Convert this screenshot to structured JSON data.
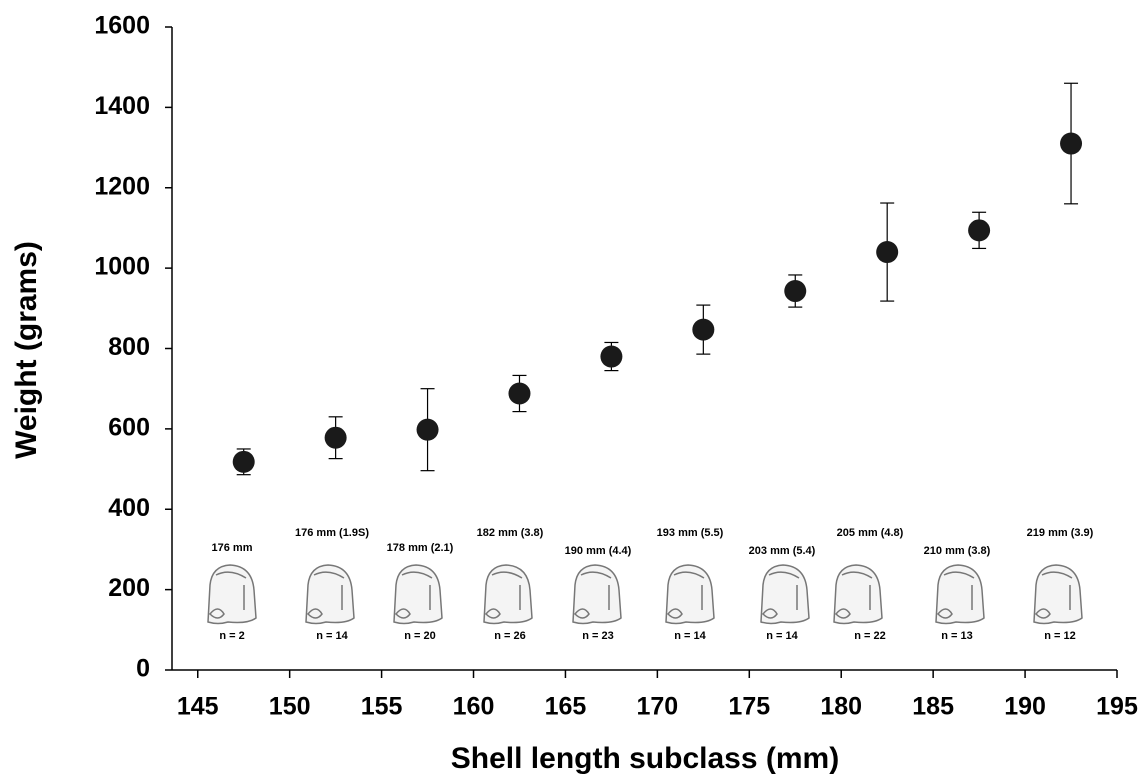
{
  "chart_data": {
    "type": "scatter",
    "x_label": "Shell length subclass (mm)",
    "y_label": "Weight (grams)",
    "x": [
      147.5,
      152.5,
      157.5,
      162.5,
      167.5,
      172.5,
      177.5,
      182.5,
      187.5,
      192.5
    ],
    "values": [
      518,
      578,
      598,
      688,
      780,
      847,
      943,
      1040,
      1094,
      1310
    ],
    "errors": [
      32,
      52,
      102,
      45,
      35,
      61,
      40,
      122,
      45,
      150
    ],
    "color": "#1a1a1a",
    "xlim": [
      143.6,
      195
    ],
    "xticks": [
      145,
      150,
      155,
      160,
      165,
      170,
      175,
      180,
      185,
      190,
      195
    ],
    "ylim": [
      0,
      1600
    ],
    "yticks": [
      0,
      200,
      400,
      600,
      800,
      1000,
      1200,
      1400,
      1600
    ],
    "annotations": [
      {
        "label": "176 mm",
        "n": "n = 2"
      },
      {
        "label": "176 mm (1.9S)",
        "n": "n = 14"
      },
      {
        "label": "178 mm (2.1)",
        "n": "n = 20"
      },
      {
        "label": "182 mm (3.8)",
        "n": "n = 26"
      },
      {
        "label": "190 mm (4.4)",
        "n": "n = 23"
      },
      {
        "label": "193 mm (5.5)",
        "n": "n = 14"
      },
      {
        "label": "203 mm (5.4)",
        "n": "n = 14"
      },
      {
        "label": "205 mm (4.8)",
        "n": "n = 22"
      },
      {
        "label": "210 mm (3.8)",
        "n": "n = 13"
      },
      {
        "label": "219 mm (3.9)",
        "n": "n = 12"
      }
    ]
  }
}
